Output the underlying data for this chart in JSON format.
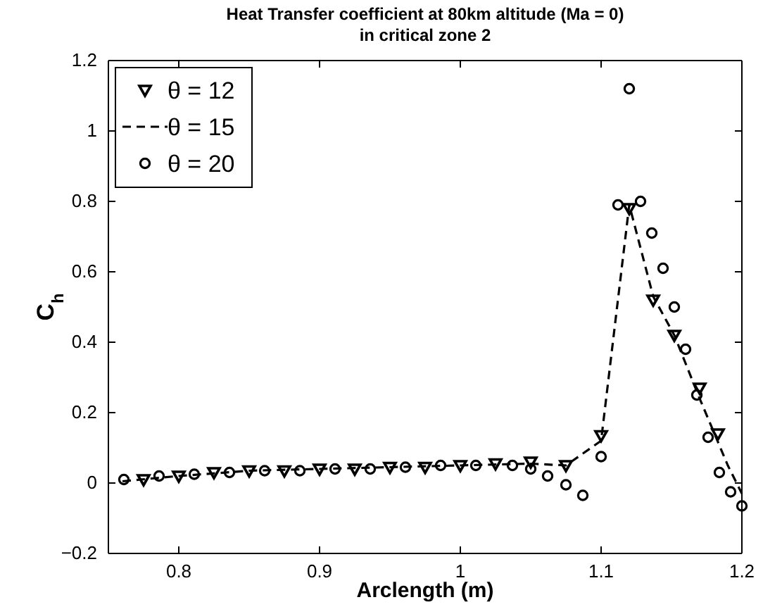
{
  "chart_data": {
    "type": "line",
    "title": "Heat Transfer coefficient at 80km altitude (Ma = 0)",
    "subtitle": "in critical zone 2",
    "xlabel": "Arclength (m)",
    "ylabel": "C$_{h}$",
    "xlim": [
      0.75,
      1.2
    ],
    "xticks": [
      0.8,
      0.9,
      1,
      1.1,
      1.2
    ],
    "ylim": [
      -0.2,
      1.2
    ],
    "yticks": [
      {
        "value": -0.2,
        "label": "−0.2"
      },
      0,
      0.2,
      0.4,
      0.6,
      0.8,
      1,
      1.2
    ],
    "grid": false,
    "legend": "top left",
    "series": [
      {
        "name": "θ = 12",
        "type": "scatter",
        "marker": "triangle",
        "color": "#000000",
        "x": [
          0.775,
          0.8,
          0.825,
          0.85,
          0.875,
          0.9,
          0.925,
          0.95,
          0.975,
          1.0,
          1.025,
          1.05,
          1.075,
          1.1,
          1.12,
          1.137,
          1.152,
          1.17,
          1.183
        ],
        "values": [
          0.01,
          0.02,
          0.03,
          0.035,
          0.035,
          0.04,
          0.04,
          0.045,
          0.045,
          0.05,
          0.055,
          0.06,
          0.05,
          0.135,
          0.78,
          0.52,
          0.42,
          0.27,
          0.14
        ]
      },
      {
        "name": "θ = 15",
        "line_style": "dashed",
        "marker": "none",
        "color": "#000000",
        "x": [
          0.76,
          0.8,
          0.85,
          0.9,
          0.95,
          1.0,
          1.05,
          1.075,
          1.1,
          1.12,
          1.137,
          1.152,
          1.17,
          1.19,
          1.2
        ],
        "values": [
          0.005,
          0.02,
          0.035,
          0.04,
          0.045,
          0.05,
          0.055,
          0.05,
          0.12,
          0.79,
          0.53,
          0.42,
          0.24,
          0.05,
          -0.03
        ]
      },
      {
        "name": "θ = 20",
        "type": "scatter",
        "marker": "circle",
        "color": "#000000",
        "x": [
          0.761,
          0.786,
          0.811,
          0.836,
          0.861,
          0.886,
          0.911,
          0.936,
          0.961,
          0.986,
          1.011,
          1.037,
          1.05,
          1.062,
          1.075,
          1.087,
          1.1,
          1.112,
          1.12,
          1.128,
          1.136,
          1.144,
          1.152,
          1.16,
          1.168,
          1.176,
          1.184,
          1.192,
          1.2
        ],
        "values": [
          0.01,
          0.02,
          0.025,
          0.03,
          0.035,
          0.035,
          0.04,
          0.04,
          0.045,
          0.05,
          0.05,
          0.05,
          0.04,
          0.02,
          -0.005,
          -0.035,
          0.075,
          0.79,
          1.12,
          0.8,
          0.71,
          0.61,
          0.5,
          0.38,
          0.25,
          0.13,
          0.03,
          -0.025,
          -0.065
        ]
      }
    ]
  }
}
